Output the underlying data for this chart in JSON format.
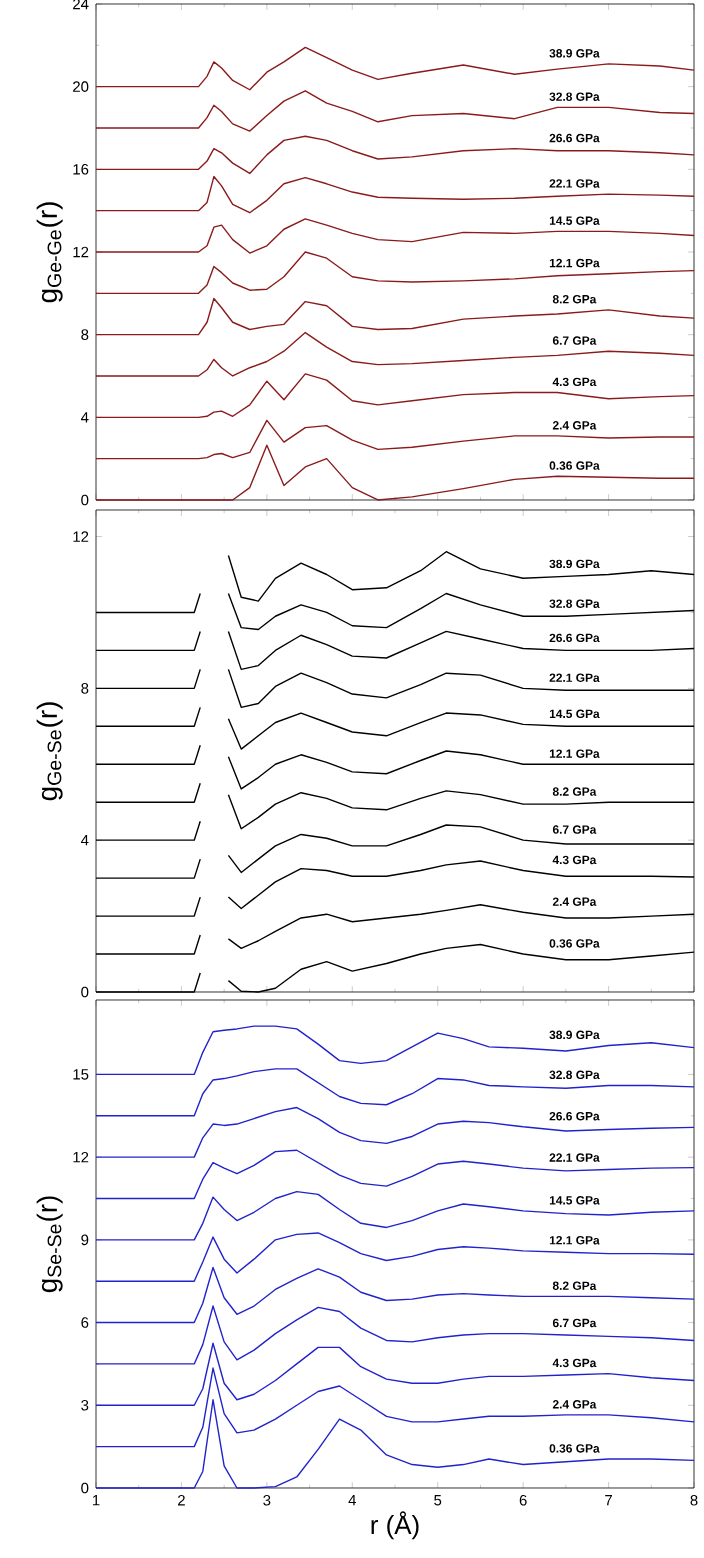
{
  "chart_data": [
    {
      "type": "line",
      "ylabel": "g$_{Ge-Ge}$(r)",
      "xlim": [
        1,
        8
      ],
      "ylim": [
        0,
        24
      ],
      "xticks": [
        1,
        2,
        3,
        4,
        5,
        6,
        7,
        8
      ],
      "yticks": [
        0,
        4,
        8,
        12,
        16,
        20,
        24
      ],
      "tick_labels": "y",
      "x": [
        1,
        2.2,
        2.3,
        2.38,
        2.47,
        2.6,
        2.8,
        3.0,
        3.2,
        3.45,
        3.7,
        4.0,
        4.3,
        4.7,
        5.3,
        5.9,
        6.4,
        7.0,
        7.6,
        8
      ],
      "series": [
        {
          "name": "0.36 GPa",
          "color": "#8b1a1a",
          "values": [
            0,
            0,
            0,
            0,
            0,
            0,
            0.6,
            2.65,
            0.7,
            1.6,
            2.0,
            0.6,
            0,
            0.15,
            0.55,
            1.0,
            1.15,
            1.1,
            1.05,
            1.05
          ]
        },
        {
          "name": "2.4 GPa",
          "color": "#8b1a1a",
          "values": [
            2,
            2,
            2.05,
            2.2,
            2.25,
            2.05,
            2.3,
            3.85,
            2.8,
            3.5,
            3.6,
            2.9,
            2.45,
            2.55,
            2.85,
            3.1,
            3.1,
            3.0,
            3.05,
            3.05
          ]
        },
        {
          "name": "4.3 GPa",
          "color": "#8b1a1a",
          "values": [
            4,
            4,
            4.05,
            4.25,
            4.3,
            4.05,
            4.6,
            5.75,
            4.85,
            6.1,
            5.8,
            4.8,
            4.6,
            4.8,
            5.1,
            5.2,
            5.2,
            4.9,
            5.0,
            5.05
          ]
        },
        {
          "name": "6.7 GPa",
          "color": "#8b1a1a",
          "values": [
            6,
            6,
            6.3,
            6.8,
            6.4,
            6.0,
            6.4,
            6.7,
            7.2,
            8.1,
            7.4,
            6.7,
            6.55,
            6.6,
            6.75,
            6.9,
            7.0,
            7.2,
            7.1,
            7.0
          ]
        },
        {
          "name": "8.2 GPa",
          "color": "#8b1a1a",
          "values": [
            8,
            8,
            8.6,
            9.75,
            9.3,
            8.6,
            8.25,
            8.4,
            8.5,
            9.6,
            9.4,
            8.4,
            8.25,
            8.3,
            8.75,
            8.9,
            9.0,
            9.2,
            8.9,
            8.8
          ]
        },
        {
          "name": "12.1 GPa",
          "color": "#8b1a1a",
          "values": [
            10,
            10,
            10.4,
            11.3,
            11.0,
            10.5,
            10.15,
            10.2,
            10.8,
            12.0,
            11.7,
            10.8,
            10.6,
            10.55,
            10.6,
            10.7,
            10.85,
            10.95,
            11.05,
            11.1
          ]
        },
        {
          "name": "14.5 GPa",
          "color": "#8b1a1a",
          "values": [
            12,
            12,
            12.3,
            13.2,
            13.3,
            12.6,
            11.95,
            12.3,
            13.1,
            13.6,
            13.3,
            12.9,
            12.6,
            12.5,
            12.95,
            12.9,
            13.0,
            13.0,
            12.9,
            12.8
          ]
        },
        {
          "name": "22.1 GPa",
          "color": "#8b1a1a",
          "values": [
            14,
            14,
            14.4,
            15.65,
            15.2,
            14.3,
            13.9,
            14.5,
            15.3,
            15.6,
            15.3,
            14.9,
            14.65,
            14.6,
            14.55,
            14.6,
            14.7,
            14.8,
            14.75,
            14.7
          ]
        },
        {
          "name": "26.6 GPa",
          "color": "#8b1a1a",
          "values": [
            16,
            16,
            16.4,
            17.0,
            16.8,
            16.3,
            15.8,
            16.7,
            17.4,
            17.6,
            17.4,
            16.9,
            16.5,
            16.6,
            16.9,
            17.0,
            16.9,
            16.9,
            16.8,
            16.7
          ]
        },
        {
          "name": "32.8 GPa",
          "color": "#8b1a1a",
          "values": [
            18,
            18,
            18.5,
            19.1,
            18.8,
            18.2,
            17.85,
            18.6,
            19.3,
            19.8,
            19.2,
            18.8,
            18.3,
            18.6,
            18.7,
            18.45,
            19.0,
            19.0,
            18.75,
            18.7
          ]
        },
        {
          "name": "38.9 GPa",
          "color": "#8b1a1a",
          "values": [
            20,
            20,
            20.5,
            21.2,
            20.9,
            20.3,
            19.85,
            20.7,
            21.2,
            21.9,
            21.4,
            20.8,
            20.35,
            20.65,
            21.05,
            20.6,
            20.85,
            21.1,
            21.0,
            20.8
          ]
        }
      ]
    },
    {
      "type": "line",
      "ylabel": "g$_{Ge-Se}$(r)",
      "xlim": [
        1,
        8
      ],
      "ylim": [
        0,
        12.7
      ],
      "xticks": [
        1,
        2,
        3,
        4,
        5,
        6,
        7,
        8
      ],
      "yticks": [
        0,
        4,
        8,
        12
      ],
      "tick_labels": "y",
      "x": [
        1,
        2.15,
        2.22,
        2.32,
        2.44,
        2.55,
        2.7,
        2.9,
        3.1,
        3.4,
        3.7,
        4.0,
        4.4,
        4.8,
        5.1,
        5.5,
        6.0,
        6.5,
        7.0,
        7.5,
        8
      ],
      "series": [
        {
          "name": "0.36 GPa",
          "color": "#000000",
          "values": [
            0,
            0,
            0.5,
            null,
            null,
            0.3,
            0.02,
            0,
            0.1,
            0.6,
            0.8,
            0.55,
            0.75,
            1.0,
            1.15,
            1.25,
            1.0,
            0.85,
            0.85,
            0.95,
            1.05
          ]
        },
        {
          "name": "2.4 GPa",
          "color": "#000000",
          "values": [
            1,
            1,
            1.5,
            null,
            null,
            1.4,
            1.15,
            1.35,
            1.6,
            1.95,
            2.05,
            1.85,
            1.95,
            2.05,
            2.15,
            2.3,
            2.1,
            1.95,
            1.95,
            2.0,
            2.05
          ]
        },
        {
          "name": "4.3 GPa",
          "color": "#000000",
          "values": [
            2,
            2,
            2.5,
            null,
            null,
            2.5,
            2.2,
            2.55,
            2.9,
            3.25,
            3.2,
            3.05,
            3.05,
            3.2,
            3.35,
            3.45,
            3.2,
            3.05,
            3.05,
            3.05,
            3.03
          ]
        },
        {
          "name": "6.7 GPa",
          "color": "#000000",
          "values": [
            3,
            3,
            3.5,
            null,
            null,
            3.6,
            3.15,
            3.5,
            3.85,
            4.15,
            4.05,
            3.85,
            3.85,
            4.15,
            4.4,
            4.35,
            4.0,
            3.9,
            3.9,
            3.9,
            3.9
          ]
        },
        {
          "name": "8.2 GPa",
          "color": "#000000",
          "values": [
            4,
            4,
            4.5,
            null,
            null,
            5.2,
            4.3,
            4.6,
            4.95,
            5.25,
            5.1,
            4.85,
            4.8,
            5.1,
            5.3,
            5.2,
            4.95,
            4.95,
            5.0,
            5.0,
            5.0
          ]
        },
        {
          "name": "12.1 GPa",
          "color": "#000000",
          "values": [
            5,
            5,
            5.5,
            null,
            null,
            6.2,
            5.35,
            5.65,
            6.0,
            6.25,
            6.05,
            5.8,
            5.75,
            6.1,
            6.35,
            6.25,
            6.0,
            6.0,
            6.0,
            6.0,
            6.0
          ]
        },
        {
          "name": "14.5 GPa",
          "color": "#000000",
          "values": [
            6,
            6,
            6.5,
            null,
            null,
            7.2,
            6.4,
            6.75,
            7.1,
            7.35,
            7.1,
            6.85,
            6.75,
            7.1,
            7.35,
            7.3,
            7.05,
            7.0,
            7.0,
            7.0,
            7.0
          ]
        },
        {
          "name": "22.1 GPa",
          "color": "#000000",
          "values": [
            7,
            7,
            7.5,
            null,
            null,
            8.5,
            7.5,
            7.6,
            8.05,
            8.4,
            8.15,
            7.85,
            7.75,
            8.1,
            8.4,
            8.35,
            8.0,
            7.95,
            7.95,
            7.95,
            7.95
          ]
        },
        {
          "name": "26.6 GPa",
          "color": "#000000",
          "values": [
            8,
            8,
            8.5,
            null,
            null,
            9.5,
            8.5,
            8.6,
            9.0,
            9.4,
            9.15,
            8.85,
            8.8,
            9.2,
            9.5,
            9.3,
            9.05,
            9.0,
            9.0,
            9.0,
            9.05
          ]
        },
        {
          "name": "32.8 GPa",
          "color": "#000000",
          "values": [
            9,
            9,
            9.5,
            null,
            null,
            10.5,
            9.6,
            9.55,
            9.9,
            10.2,
            10.0,
            9.65,
            9.6,
            10.1,
            10.5,
            10.2,
            9.9,
            9.9,
            9.95,
            10.0,
            10.05
          ]
        },
        {
          "name": "38.9 GPa",
          "color": "#000000",
          "values": [
            10,
            10,
            10.5,
            null,
            null,
            11.5,
            10.4,
            10.3,
            10.9,
            11.3,
            11.0,
            10.6,
            10.65,
            11.1,
            11.6,
            11.15,
            10.9,
            10.95,
            11.0,
            11.1,
            11.0
          ]
        }
      ]
    },
    {
      "type": "line",
      "xlabel": "r (Å)",
      "ylabel": "g$_{Se-Se}$(r)",
      "xlim": [
        1,
        8
      ],
      "ylim": [
        0,
        17.7
      ],
      "xticks": [
        1,
        2,
        3,
        4,
        5,
        6,
        7,
        8
      ],
      "yticks": [
        0,
        3,
        6,
        9,
        12,
        15
      ],
      "x": [
        1,
        2.15,
        2.25,
        2.37,
        2.5,
        2.65,
        2.85,
        3.1,
        3.35,
        3.6,
        3.85,
        4.1,
        4.4,
        4.7,
        5.0,
        5.3,
        5.6,
        6.0,
        6.5,
        7.0,
        7.5,
        8
      ],
      "series": [
        {
          "name": "0.36 GPa",
          "color": "#2222cc",
          "values": [
            0,
            0,
            0.6,
            3.2,
            0.8,
            0,
            0,
            0.05,
            0.4,
            1.4,
            2.5,
            2.1,
            1.2,
            0.85,
            0.75,
            0.85,
            1.05,
            0.85,
            0.95,
            1.05,
            1.05,
            1.0
          ]
        },
        {
          "name": "2.4 GPa",
          "color": "#2222cc",
          "values": [
            1.5,
            1.5,
            2.2,
            4.35,
            2.7,
            2.0,
            2.1,
            2.5,
            3.0,
            3.5,
            3.7,
            3.2,
            2.6,
            2.4,
            2.4,
            2.5,
            2.6,
            2.6,
            2.65,
            2.65,
            2.55,
            2.4
          ]
        },
        {
          "name": "4.3 GPa",
          "color": "#2222cc",
          "values": [
            3,
            3,
            3.6,
            5.25,
            3.8,
            3.2,
            3.4,
            3.9,
            4.5,
            5.1,
            5.1,
            4.4,
            3.95,
            3.8,
            3.8,
            3.95,
            4.05,
            4.05,
            4.1,
            4.15,
            4.0,
            3.9
          ]
        },
        {
          "name": "6.7 GPa",
          "color": "#2222cc",
          "values": [
            4.5,
            4.5,
            5.2,
            6.6,
            5.3,
            4.65,
            5.0,
            5.6,
            6.1,
            6.55,
            6.4,
            5.8,
            5.35,
            5.3,
            5.45,
            5.55,
            5.6,
            5.6,
            5.55,
            5.5,
            5.45,
            5.35
          ]
        },
        {
          "name": "8.2 GPa",
          "color": "#2222cc",
          "values": [
            6,
            6,
            6.7,
            8.0,
            6.9,
            6.3,
            6.6,
            7.2,
            7.6,
            7.95,
            7.65,
            7.1,
            6.8,
            6.85,
            7.0,
            7.05,
            7.0,
            6.95,
            6.95,
            6.95,
            6.9,
            6.85
          ]
        },
        {
          "name": "12.1 GPa",
          "color": "#2222cc",
          "values": [
            7.5,
            7.5,
            8.2,
            9.1,
            8.3,
            7.8,
            8.3,
            9.0,
            9.2,
            9.25,
            8.9,
            8.5,
            8.25,
            8.4,
            8.65,
            8.75,
            8.7,
            8.6,
            8.55,
            8.5,
            8.5,
            8.48
          ]
        },
        {
          "name": "14.5 GPa",
          "color": "#2222cc",
          "values": [
            9,
            9,
            9.6,
            10.55,
            10.1,
            9.7,
            10.0,
            10.5,
            10.75,
            10.65,
            10.1,
            9.6,
            9.45,
            9.7,
            10.05,
            10.3,
            10.2,
            10.05,
            9.95,
            9.9,
            10.0,
            10.05
          ]
        },
        {
          "name": "22.1 GPa",
          "color": "#2222cc",
          "values": [
            10.5,
            10.5,
            11.2,
            11.8,
            11.6,
            11.4,
            11.7,
            12.2,
            12.25,
            11.8,
            11.35,
            11.05,
            10.95,
            11.3,
            11.75,
            11.85,
            11.75,
            11.6,
            11.5,
            11.55,
            11.6,
            11.62
          ]
        },
        {
          "name": "26.6 GPa",
          "color": "#2222cc",
          "values": [
            12,
            12,
            12.7,
            13.2,
            13.15,
            13.2,
            13.4,
            13.65,
            13.8,
            13.4,
            12.9,
            12.6,
            12.5,
            12.75,
            13.2,
            13.3,
            13.25,
            13.1,
            12.95,
            13.0,
            13.05,
            13.08
          ]
        },
        {
          "name": "32.8 GPa",
          "color": "#2222cc",
          "values": [
            13.5,
            13.5,
            14.3,
            14.8,
            14.85,
            14.95,
            15.1,
            15.2,
            15.2,
            14.7,
            14.2,
            13.95,
            13.9,
            14.3,
            14.85,
            14.8,
            14.6,
            14.55,
            14.5,
            14.6,
            14.6,
            14.55
          ]
        },
        {
          "name": "38.9 GPa",
          "color": "#2222cc",
          "values": [
            15,
            15,
            15.8,
            16.55,
            16.6,
            16.65,
            16.75,
            16.75,
            16.65,
            16.1,
            15.5,
            15.4,
            15.5,
            16.0,
            16.5,
            16.3,
            16.0,
            15.95,
            15.85,
            16.05,
            16.15,
            15.97
          ]
        }
      ]
    }
  ]
}
